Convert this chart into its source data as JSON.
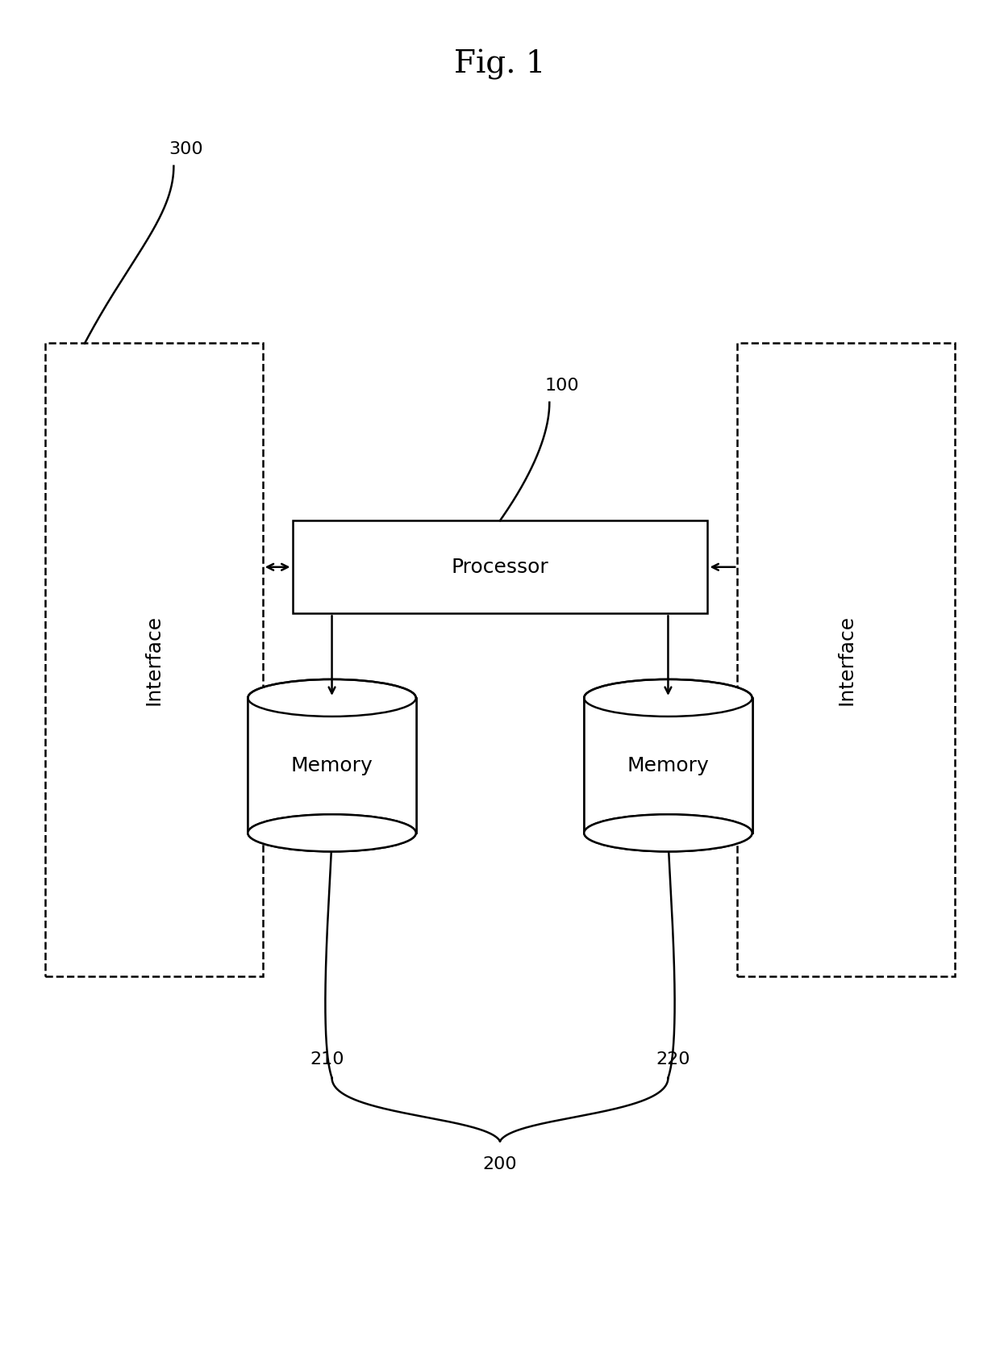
{
  "title": "Fig. 1",
  "title_fontsize": 28,
  "bg_color": "#ffffff",
  "fig_width": 12.4,
  "fig_height": 16.88,
  "label_100": "100",
  "label_200": "200",
  "label_210": "210",
  "label_220": "220",
  "label_300": "300",
  "processor_label": "Processor",
  "memory_label": "Memory",
  "interface_label": "Interface",
  "line_color": "#000000",
  "font_size_labels": 16,
  "font_size_box": 18
}
